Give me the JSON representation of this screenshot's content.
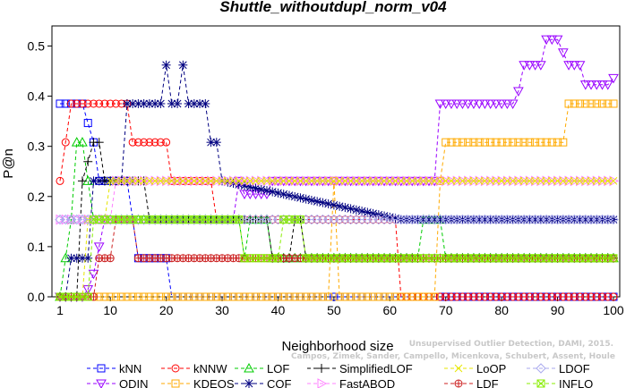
{
  "chart_data": {
    "type": "line",
    "title": "Shuttle_withoutdupl_norm_v04",
    "xlabel": "Neighborhood size",
    "ylabel": "P@n",
    "xlim": [
      1,
      100
    ],
    "ylim": [
      0,
      0.54
    ],
    "xticks": [
      1,
      10,
      20,
      30,
      40,
      50,
      60,
      70,
      80,
      90,
      100
    ],
    "yticks": [
      0.0,
      0.1,
      0.2,
      0.3,
      0.4,
      0.5
    ],
    "ytick_labels": [
      "0.0",
      "0.1",
      "0.2",
      "0.3",
      "0.4",
      "0.5"
    ],
    "grid": false,
    "legend_position": "bottom",
    "watermark": [
      "Unsupervised Outlier Detection, DAMI, 2015.",
      "Campos, Zimek, Sander, Campello, Micenkova, Schubert, Assent, Houle"
    ],
    "series": [
      {
        "name": "kNN",
        "color": "#0000ff",
        "marker": "square",
        "points": [
          [
            1,
            0.385
          ],
          [
            5,
            0.385
          ],
          [
            7,
            0.308
          ],
          [
            8,
            0.231
          ],
          [
            13,
            0.231
          ],
          [
            14,
            0.154
          ],
          [
            15,
            0.077
          ],
          [
            20,
            0.077
          ],
          [
            21,
            0
          ],
          [
            100,
            0
          ]
        ]
      },
      {
        "name": "ODIN",
        "color": "#9900ff",
        "marker": "triangle-down",
        "points": [
          [
            1,
            0
          ],
          [
            5,
            0
          ],
          [
            6,
            0.015
          ],
          [
            7,
            0.046
          ],
          [
            8,
            0.1
          ],
          [
            9,
            0.154
          ],
          [
            14,
            0.154
          ],
          [
            22,
            0.154
          ],
          [
            26,
            0.154
          ],
          [
            32,
            0.154
          ],
          [
            33,
            0.231
          ],
          [
            34,
            0.205
          ],
          [
            38,
            0.205
          ],
          [
            39,
            0.231
          ],
          [
            68,
            0.231
          ],
          [
            69,
            0.385
          ],
          [
            82,
            0.385
          ],
          [
            83,
            0.41
          ],
          [
            84,
            0.462
          ],
          [
            87,
            0.462
          ],
          [
            88,
            0.513
          ],
          [
            90,
            0.513
          ],
          [
            91,
            0.487
          ],
          [
            92,
            0.462
          ],
          [
            94,
            0.462
          ],
          [
            95,
            0.423
          ],
          [
            99,
            0.423
          ],
          [
            100,
            0.436
          ]
        ]
      },
      {
        "name": "kNNW",
        "color": "#ff0000",
        "marker": "circle",
        "points": [
          [
            1,
            0.231
          ],
          [
            2,
            0.308
          ],
          [
            3,
            0.385
          ],
          [
            13,
            0.385
          ],
          [
            14,
            0.308
          ],
          [
            20,
            0.308
          ],
          [
            21,
            0.231
          ],
          [
            28,
            0.231
          ],
          [
            29,
            0.154
          ],
          [
            61,
            0.154
          ],
          [
            62,
            0
          ],
          [
            100,
            0
          ]
        ]
      },
      {
        "name": "KDEOS",
        "color": "#ffaa00",
        "marker": "square",
        "points": [
          [
            1,
            0
          ],
          [
            49,
            0
          ],
          [
            50,
            0.231
          ],
          [
            51,
            0
          ],
          [
            68,
            0
          ],
          [
            69,
            0.231
          ],
          [
            70,
            0.308
          ],
          [
            91,
            0.308
          ],
          [
            92,
            0.385
          ],
          [
            100,
            0.385
          ]
        ]
      },
      {
        "name": "LOF",
        "color": "#00cc00",
        "marker": "triangle-up",
        "points": [
          [
            1,
            0
          ],
          [
            3,
            0.154
          ],
          [
            4,
            0.308
          ],
          [
            5,
            0.308
          ],
          [
            6,
            0.231
          ],
          [
            7,
            0.154
          ],
          [
            33,
            0.154
          ],
          [
            34,
            0.077
          ],
          [
            35,
            0.154
          ],
          [
            38,
            0.154
          ],
          [
            39,
            0.077
          ],
          [
            65,
            0.077
          ],
          [
            66,
            0.154
          ],
          [
            69,
            0.154
          ],
          [
            70,
            0.077
          ],
          [
            100,
            0.077
          ]
        ]
      },
      {
        "name": "COF",
        "color": "#000080",
        "marker": "asterisk",
        "points": [
          [
            1,
            0
          ],
          [
            2,
            0
          ],
          [
            3,
            0.077
          ],
          [
            6,
            0.077
          ],
          [
            7,
            0.231
          ],
          [
            11,
            0.231
          ],
          [
            12,
            0.231
          ],
          [
            13,
            0.385
          ],
          [
            16,
            0.385
          ],
          [
            18,
            0.385
          ],
          [
            19,
            0.385
          ],
          [
            20,
            0.462
          ],
          [
            21,
            0.385
          ],
          [
            22,
            0.385
          ],
          [
            23,
            0.462
          ],
          [
            24,
            0.385
          ],
          [
            27,
            0.385
          ],
          [
            28,
            0.308
          ],
          [
            29,
            0.308
          ],
          [
            30,
            0.231
          ],
          [
            62,
            0.154
          ],
          [
            100,
            0.154
          ]
        ]
      },
      {
        "name": "SimplifiedLOF",
        "color": "#000000",
        "marker": "plus",
        "points": [
          [
            1,
            0
          ],
          [
            4,
            0
          ],
          [
            5,
            0.231
          ],
          [
            7,
            0.308
          ],
          [
            8,
            0.308
          ],
          [
            9,
            0.231
          ],
          [
            15,
            0.231
          ],
          [
            16,
            0.231
          ],
          [
            17,
            0.154
          ],
          [
            38,
            0.154
          ],
          [
            39,
            0.077
          ],
          [
            42,
            0.077
          ],
          [
            43,
            0.154
          ],
          [
            44,
            0.154
          ],
          [
            45,
            0.077
          ],
          [
            100,
            0.077
          ]
        ]
      },
      {
        "name": "FastABOD",
        "color": "#ff80ff",
        "marker": "triangle-right",
        "points": [
          [
            1,
            0.154
          ],
          [
            10,
            0.154
          ],
          [
            11,
            0.231
          ],
          [
            100,
            0.231
          ]
        ]
      },
      {
        "name": "LoOP",
        "color": "#e6e600",
        "marker": "x",
        "points": [
          [
            1,
            0
          ],
          [
            5,
            0
          ],
          [
            6,
            0.154
          ],
          [
            9,
            0.154
          ],
          [
            10,
            0.231
          ],
          [
            30,
            0.231
          ],
          [
            31,
            0.231
          ],
          [
            100,
            0.231
          ]
        ]
      },
      {
        "name": "LDF",
        "color": "#cc2222",
        "marker": "circle-cross",
        "points": [
          [
            1,
            0
          ],
          [
            7,
            0
          ],
          [
            8,
            0.077
          ],
          [
            10,
            0.077
          ],
          [
            11,
            0.154
          ],
          [
            14,
            0.154
          ],
          [
            15,
            0.077
          ],
          [
            100,
            0.077
          ]
        ]
      },
      {
        "name": "LDOF",
        "color": "#aaaaee",
        "marker": "diamond",
        "points": [
          [
            1,
            0.154
          ],
          [
            100,
            0.154
          ]
        ]
      },
      {
        "name": "INFLO",
        "color": "#88ee00",
        "marker": "box-x",
        "points": [
          [
            1,
            0
          ],
          [
            6,
            0
          ],
          [
            7,
            0.154
          ],
          [
            33,
            0.154
          ],
          [
            34,
            0.077
          ],
          [
            40,
            0.077
          ],
          [
            41,
            0.154
          ],
          [
            44,
            0.154
          ],
          [
            45,
            0.077
          ],
          [
            100,
            0.077
          ]
        ]
      }
    ]
  }
}
